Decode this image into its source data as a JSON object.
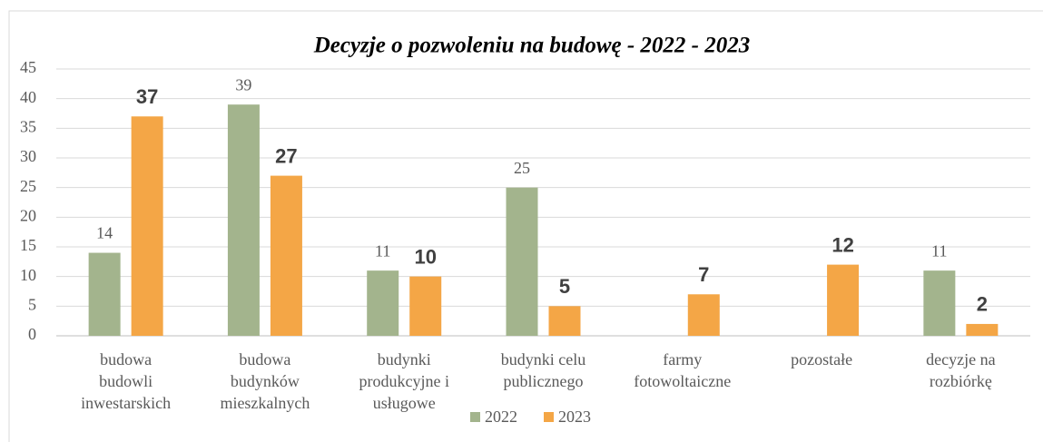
{
  "chart_data": {
    "type": "bar",
    "title": "Decyzje o pozwoleniu na budowę - 2022 - 2023",
    "categories": [
      "budowa\nbudowli\ninwestarskich",
      "budowa\nbudynków\nmieszkalnych",
      "budynki\nprodukcyjne i\nusługowe",
      "budynki celu\npublicznego",
      "farmy\nfotowoltaiczne",
      "pozostałe",
      "decyzje na\nrozbiórkę"
    ],
    "series": [
      {
        "name": "2022",
        "color": "#a3b48d",
        "values": [
          14,
          39,
          11,
          25,
          null,
          null,
          11
        ]
      },
      {
        "name": "2023",
        "color": "#f4a646",
        "values": [
          37,
          27,
          10,
          5,
          7,
          12,
          2
        ]
      }
    ],
    "ylim": [
      0,
      45
    ],
    "yticks": [
      0,
      5,
      10,
      15,
      20,
      25,
      30,
      35,
      40,
      45
    ],
    "grid": true,
    "legend": "bottom"
  }
}
